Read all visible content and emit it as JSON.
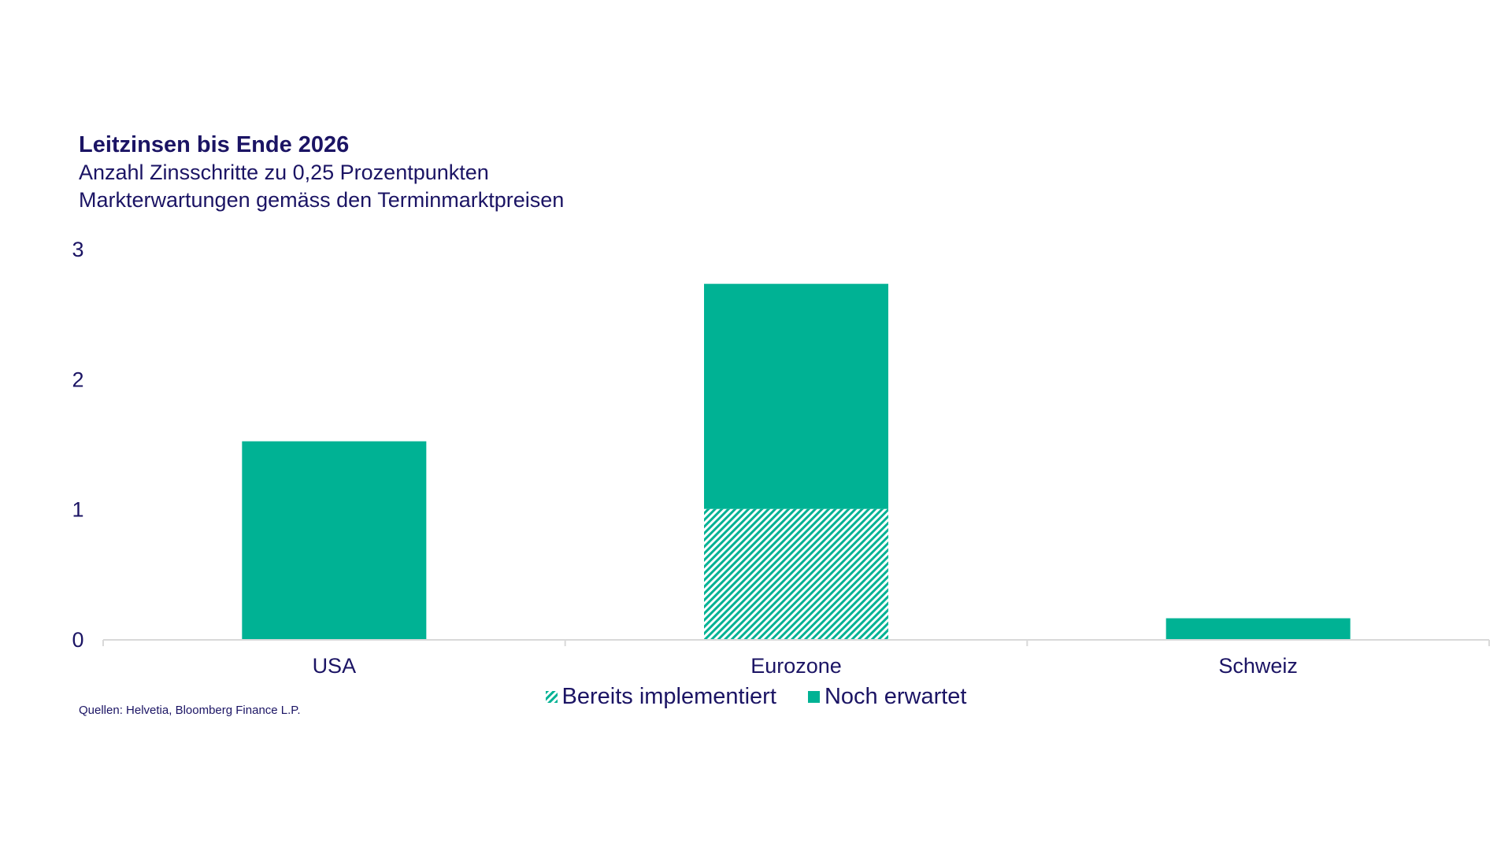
{
  "title": "Leitzinsen bis Ende 2026",
  "subtitle1": "Anzahl Zinsschritte zu 0,25 Prozentpunkten",
  "subtitle2": "Markterwartungen gemäss den Terminmarktpreisen",
  "source": "Quellen: Helvetia, Bloomberg Finance L.P.",
  "colors": {
    "bar": "#00b294",
    "text": "#1b1464",
    "axis": "#d9d9d9"
  },
  "chart_data": {
    "type": "bar",
    "stacked": true,
    "categories": [
      "USA",
      "Eurozone",
      "Schweiz"
    ],
    "series": [
      {
        "name": "Bereits implementiert",
        "values": [
          0,
          1.0,
          0
        ],
        "pattern": "hatched"
      },
      {
        "name": "Noch erwartet",
        "values": [
          1.52,
          1.73,
          0.16
        ],
        "pattern": "solid"
      }
    ],
    "ylim": [
      0,
      3
    ],
    "yticks": [
      "0",
      "1",
      "2",
      "3"
    ],
    "legend_position": "bottom",
    "grid": false
  }
}
